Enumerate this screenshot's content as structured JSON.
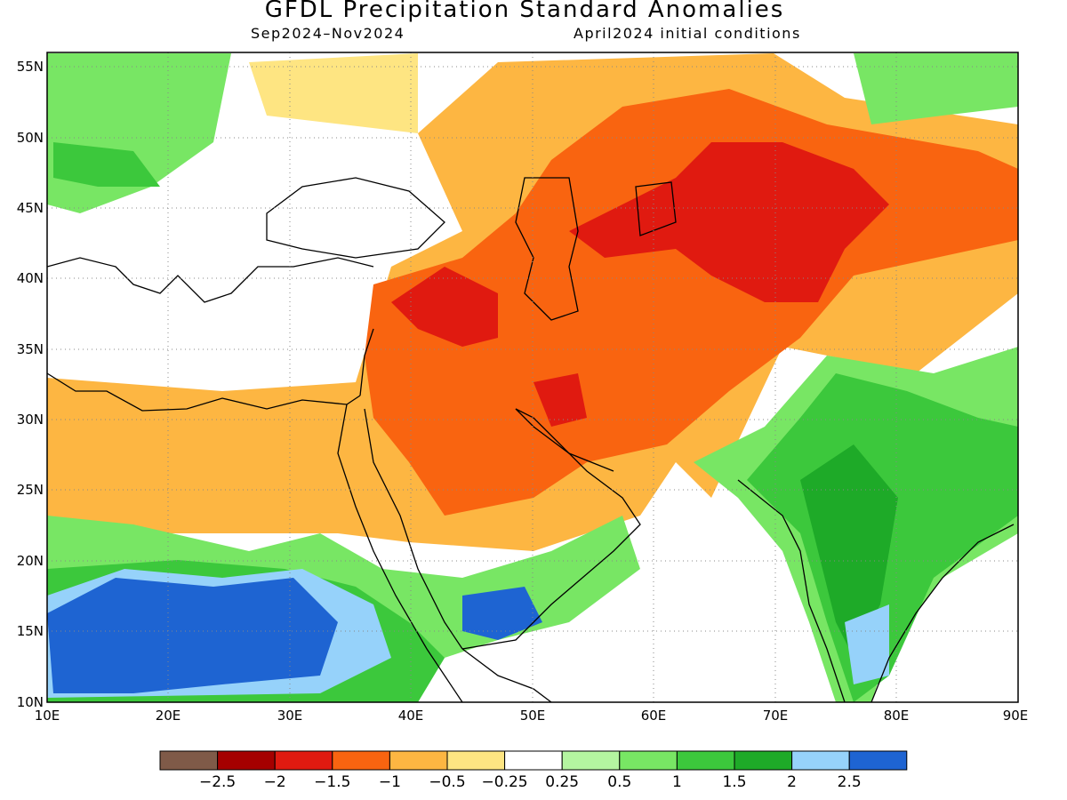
{
  "title": "GFDL Precipitation Standard Anomalies",
  "subtitle_left": "Sep2024–Nov2024",
  "subtitle_right": "April2024 initial conditions",
  "map": {
    "lon_range": [
      10,
      90
    ],
    "lat_range": [
      10,
      56
    ],
    "lon_ticks": [
      "10E",
      "20E",
      "30E",
      "40E",
      "50E",
      "60E",
      "70E",
      "80E",
      "90E"
    ],
    "lat_ticks": [
      "10N",
      "15N",
      "20N",
      "25N",
      "30N",
      "35N",
      "40N",
      "45N",
      "50N",
      "55N"
    ],
    "grid": "dotted"
  },
  "colorbar": {
    "colors": [
      "#7f5a48",
      "#a50000",
      "#e01a10",
      "#f96410",
      "#fdb642",
      "#fee582",
      "#ffffff",
      "#b4f5a0",
      "#78e664",
      "#3cc83c",
      "#1eaa28",
      "#96d2fa",
      "#1e64d2"
    ],
    "labels": [
      "−2.5",
      "−2",
      "−1.5",
      "−1",
      "−0.5",
      "−0.25",
      "0.25",
      "0.5",
      "1",
      "1.5",
      "2",
      "2.5"
    ]
  }
}
